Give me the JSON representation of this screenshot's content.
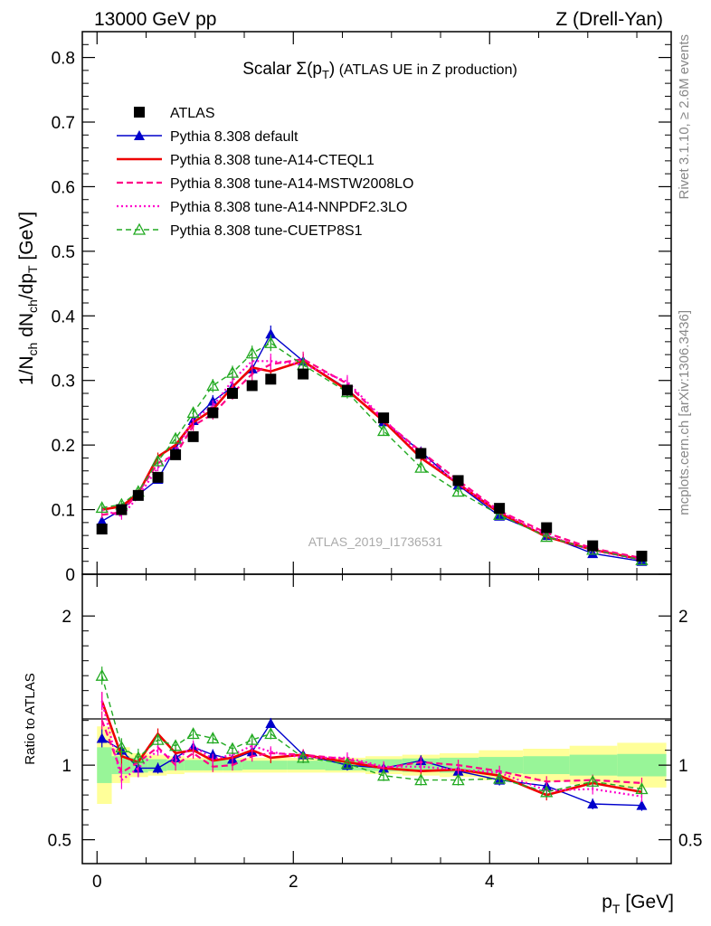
{
  "header": {
    "left": "13000 GeV pp",
    "right": "Z (Drell-Yan)"
  },
  "side_labels": {
    "rivet": "Rivet 3.1.10, ≥ 2.6M events",
    "mcplots": "mcplots.cern.ch [arXiv:1306.3436]"
  },
  "chart_data": [
    {
      "type": "line",
      "panel": "main",
      "title": "Scalar Σ(p_T) (ATLAS UE in Z production)",
      "xlabel": "p_T [GeV]",
      "ylabel": "1/N_ch dN_ch/dp_T [GeV]",
      "xlim": [
        -0.15,
        5.85
      ],
      "ylim": [
        0,
        0.84
      ],
      "yticks": [
        0,
        0.1,
        0.2,
        0.3,
        0.4,
        0.5,
        0.6,
        0.7,
        0.8
      ],
      "ytick_labels": [
        "0",
        "0.1",
        "0.2",
        "0.3",
        "0.4",
        "0.5",
        "0.6",
        "0.7",
        "0.8"
      ],
      "watermark": "ATLAS_2019_I1736531",
      "legend_position": "top-left",
      "x": [
        0.05,
        0.25,
        0.42,
        0.62,
        0.8,
        0.98,
        1.18,
        1.38,
        1.58,
        1.77,
        2.1,
        2.55,
        2.92,
        3.3,
        3.68,
        4.1,
        4.58,
        5.05,
        5.55
      ],
      "series": [
        {
          "name": "ATLAS",
          "style": "data",
          "color": "#000000",
          "values": [
            0.07,
            0.1,
            0.122,
            0.15,
            0.185,
            0.213,
            0.25,
            0.28,
            0.292,
            0.302,
            0.31,
            0.285,
            0.242,
            0.187,
            0.145,
            0.102,
            0.072,
            0.044,
            0.028
          ]
        },
        {
          "name": "Pythia 8.308 default",
          "style": "default",
          "color": "#0000cc",
          "values": [
            0.082,
            0.1,
            0.123,
            0.147,
            0.195,
            0.238,
            0.268,
            0.29,
            0.318,
            0.372,
            0.33,
            0.287,
            0.236,
            0.19,
            0.138,
            0.09,
            0.06,
            0.032,
            0.02
          ]
        },
        {
          "name": "Pythia 8.308 tune-A14-CTEQL1",
          "style": "a14cteq",
          "color": "#ee0000",
          "values": [
            0.1,
            0.105,
            0.125,
            0.182,
            0.2,
            0.235,
            0.255,
            0.29,
            0.32,
            0.314,
            0.33,
            0.285,
            0.237,
            0.18,
            0.14,
            0.095,
            0.058,
            0.038,
            0.023
          ]
        },
        {
          "name": "Pythia 8.308 tune-A14-MSTW2008LO",
          "style": "a14mstw",
          "color": "#ff0088",
          "values": [
            0.092,
            0.096,
            0.126,
            0.172,
            0.185,
            0.23,
            0.248,
            0.28,
            0.31,
            0.325,
            0.333,
            0.295,
            0.238,
            0.19,
            0.145,
            0.098,
            0.064,
            0.04,
            0.025
          ]
        },
        {
          "name": "Pythia 8.308 tune-A14-NNPDF2.3LO",
          "style": "a14nnpdf",
          "color": "#ff00cc",
          "values": [
            0.1,
            0.09,
            0.12,
            0.165,
            0.19,
            0.24,
            0.26,
            0.3,
            0.33,
            0.33,
            0.325,
            0.298,
            0.24,
            0.185,
            0.14,
            0.097,
            0.06,
            0.037,
            0.022
          ]
        },
        {
          "name": "Pythia 8.308 tune-CUETP8S1",
          "style": "cuetp8s1",
          "color": "#22aa22",
          "values": [
            0.103,
            0.108,
            0.128,
            0.175,
            0.21,
            0.25,
            0.292,
            0.312,
            0.342,
            0.358,
            0.324,
            0.282,
            0.222,
            0.165,
            0.128,
            0.092,
            0.058,
            0.038,
            0.022
          ]
        }
      ]
    },
    {
      "type": "line",
      "panel": "ratio",
      "ylabel": "Ratio to ATLAS",
      "xlabel": "p_T [GeV]",
      "xlim": [
        -0.15,
        5.85
      ],
      "ylim": [
        0.34,
        2.28
      ],
      "yticks": [
        0.5,
        1,
        2
      ],
      "ytick_labels": [
        "0.5",
        "1",
        "2"
      ],
      "xticks": [
        0,
        2,
        4
      ],
      "xtick_labels": [
        "0",
        "2",
        "4"
      ],
      "x": [
        0.05,
        0.25,
        0.42,
        0.62,
        0.8,
        0.98,
        1.18,
        1.38,
        1.58,
        1.77,
        2.1,
        2.55,
        2.92,
        3.3,
        3.68,
        4.1,
        4.58,
        5.05,
        5.55
      ],
      "bands": {
        "green": [
          0.12,
          0.06,
          0.05,
          0.04,
          0.035,
          0.035,
          0.035,
          0.035,
          0.03,
          0.03,
          0.03,
          0.035,
          0.04,
          0.045,
          0.05,
          0.055,
          0.06,
          0.07,
          0.075
        ],
        "yellow": [
          0.26,
          0.12,
          0.08,
          0.07,
          0.06,
          0.05,
          0.05,
          0.05,
          0.05,
          0.05,
          0.05,
          0.05,
          0.06,
          0.07,
          0.08,
          0.1,
          0.11,
          0.13,
          0.15
        ],
        "green_color": "#98f598",
        "yellow_color": "#ffff99"
      },
      "series": [
        {
          "name": "Pythia 8.308 default",
          "style": "default",
          "color": "#0000cc",
          "values": [
            1.18,
            1.1,
            0.98,
            0.98,
            1.05,
            1.12,
            1.07,
            1.04,
            1.09,
            1.28,
            1.07,
            1.0,
            0.98,
            1.03,
            0.96,
            0.9,
            0.86,
            0.74,
            0.73
          ]
        },
        {
          "name": "Pythia 8.308 tune-A14-CTEQL1",
          "style": "a14cteq",
          "color": "#ee0000",
          "values": [
            1.43,
            1.06,
            1.02,
            1.21,
            1.08,
            1.1,
            1.03,
            1.05,
            1.1,
            1.05,
            1.07,
            1.02,
            0.98,
            0.96,
            0.97,
            0.93,
            0.8,
            0.88,
            0.82
          ]
        },
        {
          "name": "Pythia 8.308 tune-A14-MSTW2008LO",
          "style": "a14mstw",
          "color": "#ff0088",
          "values": [
            1.3,
            0.95,
            1.02,
            1.12,
            1.0,
            1.08,
            0.99,
            1.0,
            1.06,
            1.08,
            1.07,
            1.04,
            0.98,
            1.02,
            1.0,
            0.96,
            0.89,
            0.9,
            0.88
          ]
        },
        {
          "name": "Pythia 8.308 tune-A14-NNPDF2.3LO",
          "style": "a14nnpdf",
          "color": "#ff00cc",
          "values": [
            1.43,
            0.9,
            0.98,
            1.1,
            1.03,
            1.13,
            1.04,
            1.07,
            1.13,
            1.09,
            1.05,
            1.05,
            0.99,
            0.99,
            0.97,
            0.95,
            0.83,
            0.84,
            0.79
          ]
        },
        {
          "name": "Pythia 8.308 tune-CUETP8S1",
          "style": "cuetp8s1",
          "color": "#22aa22",
          "values": [
            1.6,
            1.12,
            1.05,
            1.17,
            1.13,
            1.21,
            1.18,
            1.11,
            1.17,
            1.21,
            1.05,
            1.01,
            0.93,
            0.9,
            0.9,
            0.91,
            0.82,
            0.89,
            0.84
          ]
        }
      ]
    }
  ]
}
